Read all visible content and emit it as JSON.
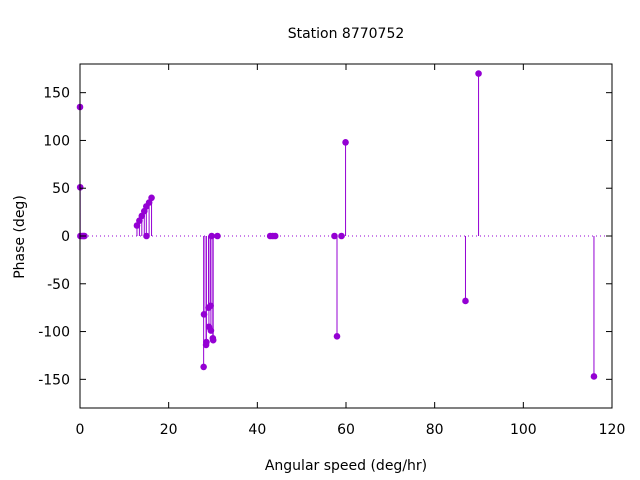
{
  "chart_data": {
    "type": "stem",
    "title": "Station 8770752",
    "xlabel": "Angular speed (deg/hr)",
    "ylabel": "Phase (deg)",
    "xlim": [
      0,
      120
    ],
    "ylim": [
      -180,
      180
    ],
    "xticks": [
      0,
      20,
      40,
      60,
      80,
      100,
      120
    ],
    "yticks": [
      -150,
      -100,
      -50,
      0,
      50,
      100,
      150
    ],
    "zero_line": "dotted",
    "grid": false,
    "color": "#9400d3",
    "points": [
      {
        "x": 0.0,
        "y": 135
      },
      {
        "x": 0.04,
        "y": 51
      },
      {
        "x": 0.08,
        "y": 0
      },
      {
        "x": 0.5,
        "y": 0
      },
      {
        "x": 0.8,
        "y": 0
      },
      {
        "x": 1.0,
        "y": 0
      },
      {
        "x": 12.85,
        "y": 11
      },
      {
        "x": 13.4,
        "y": 16
      },
      {
        "x": 13.94,
        "y": 21
      },
      {
        "x": 14.5,
        "y": 26
      },
      {
        "x": 14.96,
        "y": 31
      },
      {
        "x": 15.0,
        "y": 0
      },
      {
        "x": 15.59,
        "y": 35
      },
      {
        "x": 16.14,
        "y": 40
      },
      {
        "x": 27.89,
        "y": -137
      },
      {
        "x": 27.97,
        "y": -82
      },
      {
        "x": 28.44,
        "y": -114
      },
      {
        "x": 28.51,
        "y": -111
      },
      {
        "x": 28.99,
        "y": -75
      },
      {
        "x": 29.08,
        "y": -95
      },
      {
        "x": 29.46,
        "y": -73
      },
      {
        "x": 29.53,
        "y": -99
      },
      {
        "x": 29.7,
        "y": 0
      },
      {
        "x": 29.96,
        "y": -107
      },
      {
        "x": 30.04,
        "y": -109
      },
      {
        "x": 31.0,
        "y": 0
      },
      {
        "x": 42.9,
        "y": 0
      },
      {
        "x": 43.48,
        "y": 0
      },
      {
        "x": 44.03,
        "y": 0
      },
      {
        "x": 57.4,
        "y": 0
      },
      {
        "x": 57.97,
        "y": -105
      },
      {
        "x": 58.98,
        "y": 0
      },
      {
        "x": 59.9,
        "y": 98
      },
      {
        "x": 86.95,
        "y": -68
      },
      {
        "x": 89.9,
        "y": 170
      },
      {
        "x": 115.93,
        "y": -147
      }
    ]
  }
}
